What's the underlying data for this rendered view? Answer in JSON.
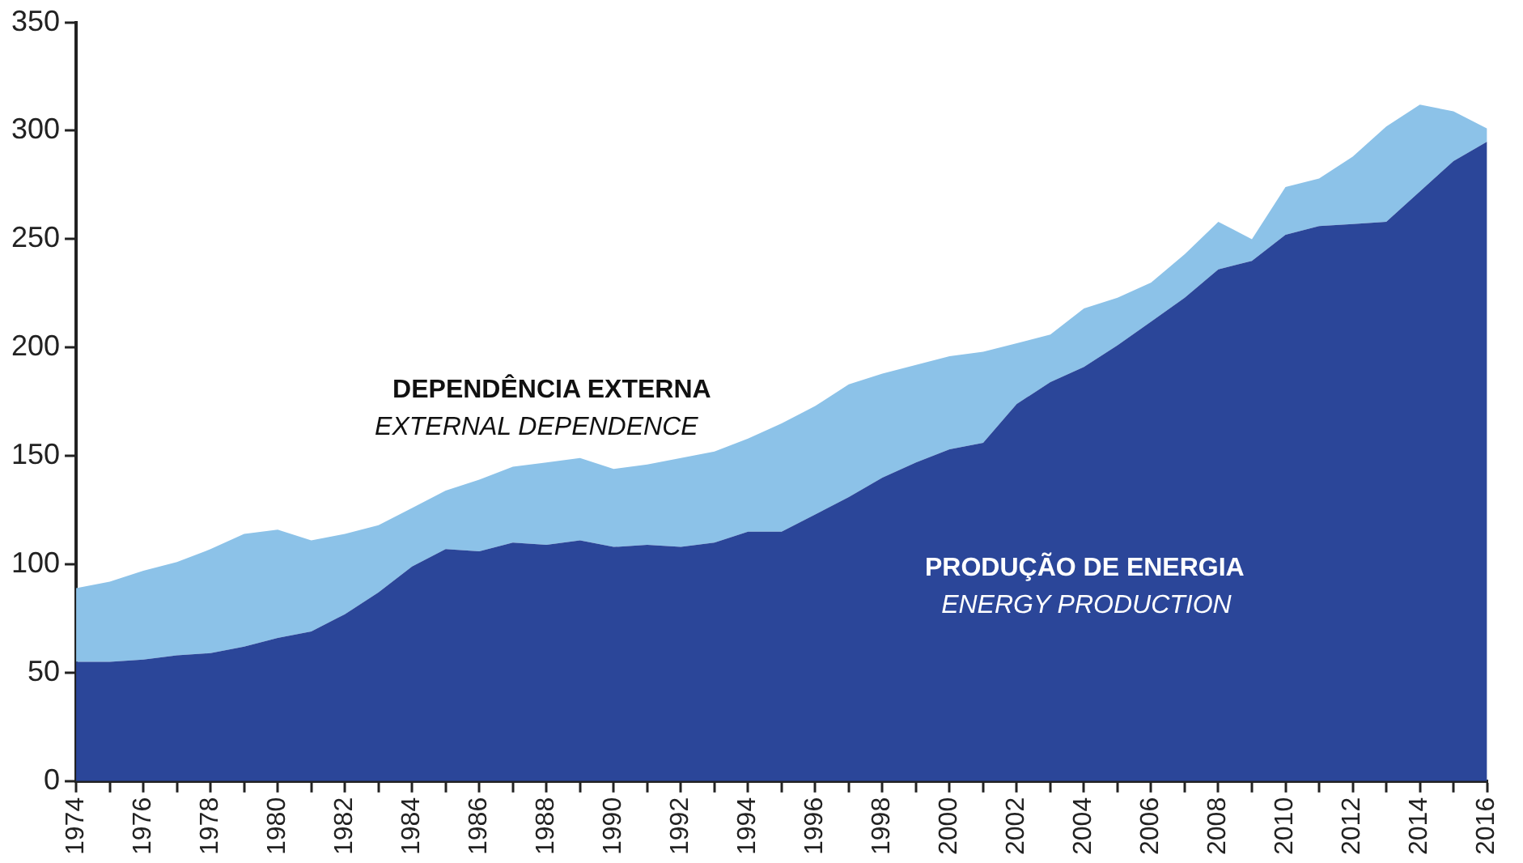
{
  "chart_data": {
    "type": "area",
    "stacked": true,
    "grid": false,
    "legend": false,
    "categories": [
      "1974",
      null,
      "1976",
      null,
      "1978",
      null,
      "1980",
      null,
      "1982",
      null,
      "1984",
      null,
      "1986",
      null,
      "1988",
      null,
      "1990",
      null,
      "1992",
      null,
      "1994",
      null,
      "1996",
      null,
      "1998",
      null,
      "2000",
      null,
      "2002",
      null,
      "2004",
      null,
      "2006",
      null,
      "2008",
      null,
      "2010",
      null,
      "2012",
      null,
      "2014",
      null,
      "2016"
    ],
    "ylim": [
      0,
      350
    ],
    "yticks": [
      0,
      50,
      100,
      150,
      200,
      250,
      300,
      350
    ],
    "series": [
      {
        "name": "PRODUÇÃO DE ENERGIA\nENERGY PRODUCTION",
        "color": "#2b4699",
        "values": [
          55,
          55,
          56,
          58,
          59,
          62,
          66,
          69,
          77,
          87,
          99,
          107,
          106,
          110,
          109,
          111,
          108,
          109,
          108,
          110,
          115,
          115,
          123,
          131,
          140,
          147,
          153,
          156,
          174,
          184,
          191,
          201,
          212,
          223,
          236,
          240,
          252,
          256,
          257,
          258,
          272,
          286,
          295
        ]
      },
      {
        "name": "DEPENDÊNCIA EXTERNA\nEXTERNAL DEPENDENCE",
        "color": "#8cc2e8",
        "values": [
          34,
          37,
          41,
          43,
          48,
          52,
          50,
          42,
          37,
          31,
          27,
          27,
          33,
          35,
          38,
          38,
          36,
          37,
          41,
          42,
          43,
          50,
          50,
          52,
          48,
          45,
          43,
          42,
          28,
          22,
          27,
          22,
          18,
          20,
          22,
          10,
          22,
          22,
          31,
          44,
          40,
          23,
          6
        ]
      }
    ]
  }
}
